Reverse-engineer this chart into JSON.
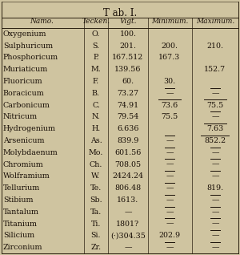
{
  "title": "T ab. I.",
  "headers": [
    "Namo.",
    "Tecken.",
    "Vigt.",
    "Minimum.",
    "Maximum."
  ],
  "rows": [
    [
      "Oxygenium",
      "O.",
      "100.",
      "",
      ""
    ],
    [
      "Sulphuricum",
      "S.",
      "201.",
      "200.",
      "210."
    ],
    [
      "Phosphoricum",
      "P.",
      "167.512",
      "167.3",
      ""
    ],
    [
      "Muriaticum",
      "M.",
      "139.56",
      "",
      "152.7"
    ],
    [
      "Fluoricum",
      "F.",
      "60.",
      "30.",
      ""
    ],
    [
      "Boracicum",
      "B.",
      "73.27",
      "—",
      "—"
    ],
    [
      "Carbonicum",
      "C.",
      "74.91",
      "73.6",
      "75.5"
    ],
    [
      "Nitricum",
      "N.",
      "79.54",
      "75.5",
      "—"
    ],
    [
      "Hydrogenium",
      "H.",
      "6.636",
      "",
      "7.63"
    ],
    [
      "Arsenicum",
      "As.",
      "839.9",
      "—",
      "852.2"
    ],
    [
      "Molybdaenum",
      "Mo.",
      "601.56",
      "—",
      "—"
    ],
    [
      "Chromium",
      "Ch.",
      "708.05",
      "—",
      "—"
    ],
    [
      "Wolframium",
      "W.",
      "2424.24",
      "—",
      "—"
    ],
    [
      "Tellurium",
      "Te.",
      "806.48",
      "—",
      "819."
    ],
    [
      "Stibium",
      "Sb.",
      "1613.",
      "—",
      "—"
    ],
    [
      "Tantalum",
      "Ta.",
      "—",
      "—",
      "—"
    ],
    [
      "Titanium",
      "Ti.",
      "1801?",
      "—",
      "—"
    ],
    [
      "Silicium",
      "Si.",
      "(·)304.35",
      "202.9",
      "—"
    ],
    [
      "Zirconium",
      "Zr.",
      "—",
      "—",
      "—"
    ]
  ],
  "overline_min": [
    5,
    6,
    9,
    10,
    11,
    12,
    13,
    14,
    15,
    16,
    18
  ],
  "overline_max": [
    5,
    6,
    7,
    8,
    9,
    10,
    11,
    12,
    14,
    15,
    16,
    17,
    18
  ],
  "bg_color": "#cfc4a0",
  "line_color": "#2a2010",
  "text_color": "#1a1008",
  "title_fontsize": 8.5,
  "header_fontsize": 6.5,
  "row_fontsize": 6.8
}
